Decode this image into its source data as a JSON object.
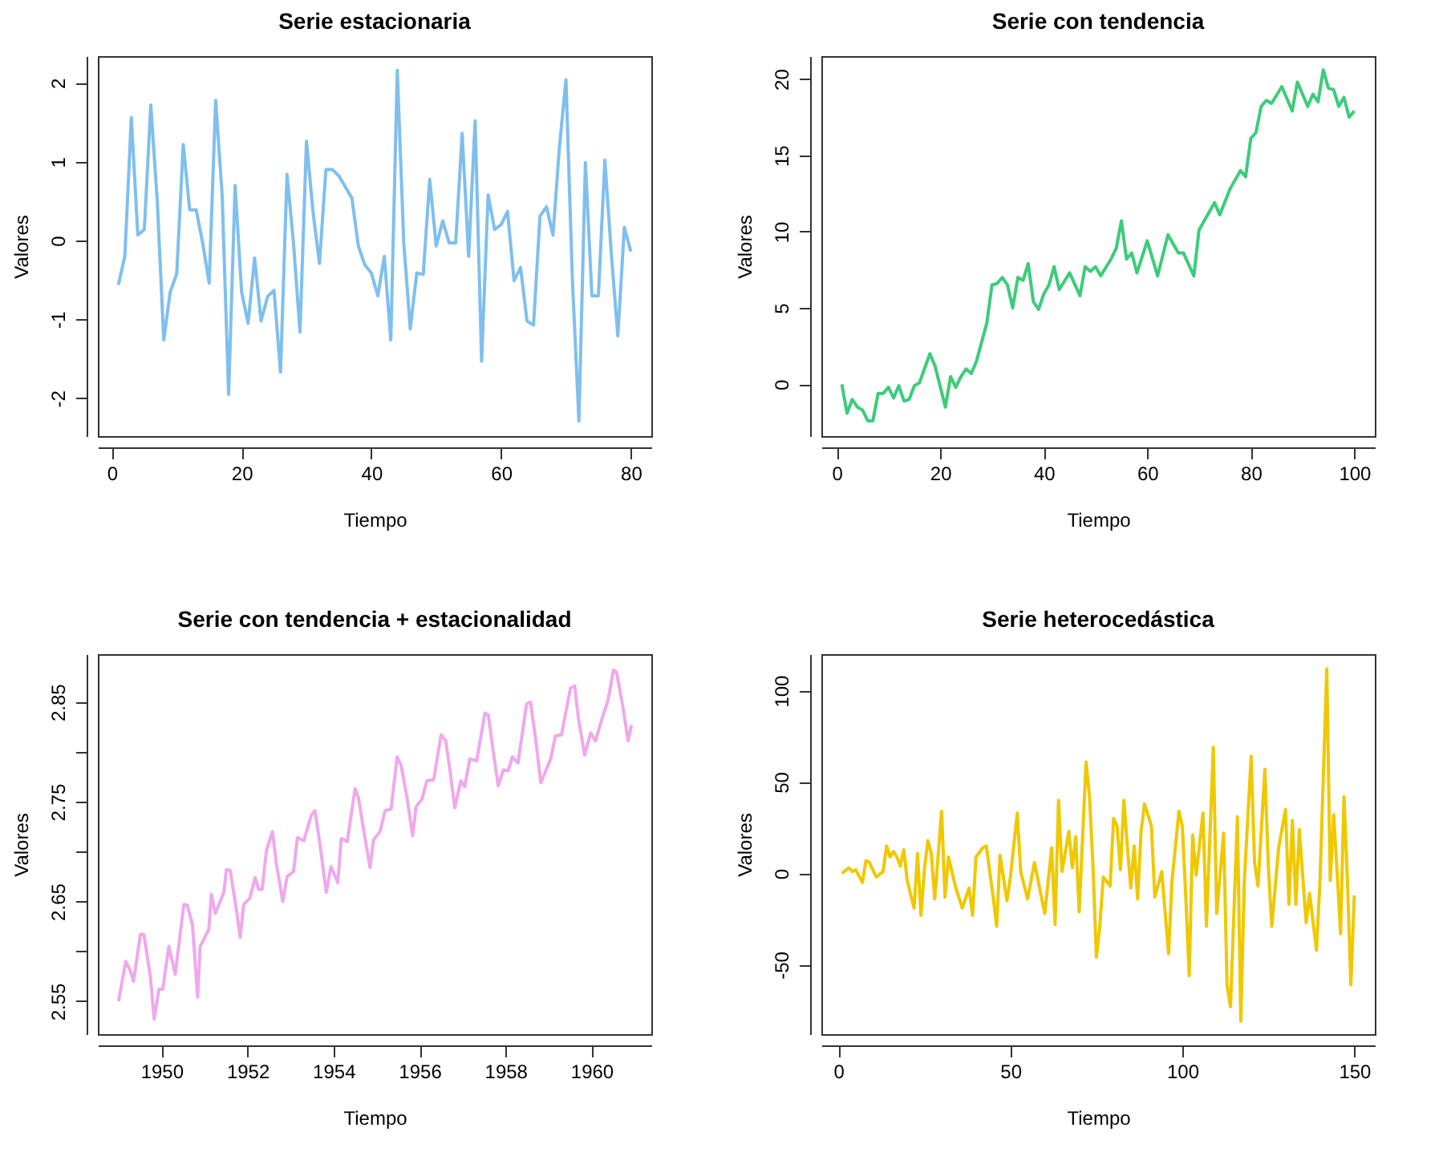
{
  "chart_data": [
    {
      "type": "line",
      "title": "Serie estacionaria",
      "xlabel": "Tiempo",
      "ylabel": "Valores",
      "xlim": [
        -2.16,
        83.16
      ],
      "xticks": [
        0,
        20,
        40,
        60,
        80
      ],
      "ylim": [
        -2.48,
        2.34
      ],
      "yticks": [
        -2,
        -1,
        0,
        1,
        2
      ],
      "x": [
        1,
        2,
        3,
        4,
        5,
        6,
        7,
        8,
        9,
        10,
        11,
        12,
        13,
        14,
        15,
        16,
        17,
        18,
        19,
        20,
        21,
        22,
        23,
        24,
        25,
        26,
        27,
        28,
        29,
        30,
        31,
        32,
        33,
        34,
        35,
        36,
        37,
        38,
        39,
        40,
        41,
        42,
        43,
        44,
        45,
        46,
        47,
        48,
        49,
        50,
        51,
        52,
        53,
        54,
        55,
        56,
        57,
        58,
        59,
        60,
        61,
        62,
        63,
        64,
        65,
        66,
        67,
        68,
        69,
        70,
        71,
        72,
        73,
        74,
        75,
        76,
        77,
        78,
        79,
        80
      ],
      "series": [
        {
          "color": "#7fbfef",
          "values": [
            -0.56,
            -0.2,
            1.56,
            0.07,
            0.14,
            1.72,
            0.5,
            -1.26,
            -0.65,
            -0.42,
            1.22,
            0.39,
            0.39,
            -0.03,
            -0.54,
            1.78,
            0.58,
            -1.95,
            0.7,
            -0.65,
            -1.05,
            -0.22,
            -1.02,
            -0.71,
            -0.63,
            -1.67,
            0.84,
            -0.03,
            -1.16,
            1.26,
            0.37,
            -0.29,
            0.9,
            0.9,
            0.82,
            0.68,
            0.54,
            -0.07,
            -0.31,
            -0.41,
            -0.7,
            -0.2,
            -1.26,
            2.16,
            -0.03,
            -1.12,
            -0.41,
            -0.43,
            0.78,
            -0.07,
            0.25,
            -0.03,
            -0.03,
            1.36,
            -0.2,
            1.52,
            -1.53,
            0.58,
            0.14,
            0.2,
            0.37,
            -0.51,
            -0.34,
            -1.02,
            -1.07,
            0.31,
            0.43,
            0.07,
            1.19,
            2.04,
            -0.51,
            -2.29,
            0.99,
            -0.7,
            -0.7,
            1.02,
            -0.17,
            -1.21,
            0.17,
            -0.14
          ]
        }
      ]
    },
    {
      "type": "line",
      "title": "Serie con tendencia",
      "xlabel": "Tiempo",
      "ylabel": "Valores",
      "xlim": [
        -2.96,
        103.96
      ],
      "xticks": [
        0,
        20,
        40,
        60,
        80,
        100
      ],
      "ylim": [
        -3.4,
        21.5
      ],
      "yticks": [
        0,
        5,
        10,
        15,
        20
      ],
      "x": [
        1,
        2,
        3,
        4,
        5,
        6,
        7,
        8,
        9,
        10,
        11,
        12,
        13,
        14,
        15,
        16,
        18,
        19,
        21,
        22,
        23,
        24,
        25,
        26,
        27,
        29,
        30,
        31,
        32,
        33,
        34,
        35,
        36,
        37,
        38,
        39,
        40,
        41,
        42,
        43,
        45,
        47,
        48,
        49,
        50,
        51,
        53,
        54,
        55,
        56,
        57,
        58,
        60,
        62,
        64,
        66,
        67,
        69,
        70,
        73,
        74,
        76,
        78,
        79,
        80,
        81,
        82,
        83,
        84,
        86,
        88,
        89,
        91,
        92,
        93,
        94,
        95,
        96,
        97,
        98,
        99,
        100
      ],
      "series": [
        {
          "color": "#3dcc7a",
          "values": [
            0,
            -1.9,
            -1.0,
            -1.5,
            -1.7,
            -2.4,
            -2.4,
            -0.6,
            -0.6,
            -0.2,
            -0.9,
            -0.1,
            -1.1,
            -1.0,
            -0.1,
            0.1,
            2.0,
            1.2,
            -1.5,
            0.5,
            -0.2,
            0.5,
            1.0,
            0.7,
            1.5,
            4.0,
            6.5,
            6.6,
            7.0,
            6.5,
            5.0,
            7.0,
            6.8,
            7.9,
            5.4,
            4.9,
            5.9,
            6.5,
            7.7,
            6.2,
            7.3,
            5.8,
            7.7,
            7.4,
            7.7,
            7.1,
            8.2,
            8.9,
            10.7,
            8.2,
            8.6,
            7.3,
            9.4,
            7.1,
            9.8,
            8.6,
            8.6,
            7.1,
            10.1,
            11.9,
            11.1,
            12.8,
            14.0,
            13.6,
            16.1,
            16.5,
            18.2,
            18.6,
            18.4,
            19.5,
            17.9,
            19.8,
            18.2,
            19.0,
            18.5,
            20.6,
            19.4,
            19.3,
            18.2,
            18.8,
            17.5,
            17.9
          ]
        }
      ]
    },
    {
      "type": "line",
      "title": "Serie con tendencia + estacionalidad",
      "xlabel": "Tiempo",
      "ylabel": "Valores",
      "xlim": [
        1948.52,
        1961.39
      ],
      "xticks": [
        1950,
        1952,
        1954,
        1956,
        1958,
        1960
      ],
      "ylim": [
        2.517,
        2.898
      ],
      "yticks": [
        2.55,
        {
          "value": 2.6,
          "label": null
        },
        2.65,
        {
          "value": 2.7,
          "label": null
        },
        2.75,
        {
          "value": 2.8,
          "label": null
        },
        2.85
      ],
      "x": [
        1949.0,
        1949.17,
        1949.28,
        1949.35,
        1949.51,
        1949.59,
        1949.74,
        1949.83,
        1949.94,
        1950.03,
        1950.17,
        1950.32,
        1950.52,
        1950.6,
        1950.72,
        1950.84,
        1950.9,
        1951.1,
        1951.16,
        1951.25,
        1951.45,
        1951.51,
        1951.6,
        1951.74,
        1951.83,
        1951.91,
        1952.05,
        1952.18,
        1952.26,
        1952.34,
        1952.44,
        1952.58,
        1952.67,
        1952.82,
        1952.92,
        1953.07,
        1953.16,
        1953.31,
        1953.48,
        1953.57,
        1953.69,
        1953.83,
        1953.94,
        1954.1,
        1954.18,
        1954.32,
        1954.5,
        1954.58,
        1954.7,
        1954.85,
        1954.93,
        1955.08,
        1955.2,
        1955.34,
        1955.48,
        1955.57,
        1955.71,
        1955.84,
        1955.92,
        1956.06,
        1956.17,
        1956.33,
        1956.5,
        1956.61,
        1956.71,
        1956.82,
        1956.96,
        1957.05,
        1957.17,
        1957.33,
        1957.52,
        1957.6,
        1957.71,
        1957.83,
        1957.95,
        1958.06,
        1958.16,
        1958.29,
        1958.49,
        1958.58,
        1958.7,
        1958.82,
        1959.05,
        1959.16,
        1959.3,
        1959.51,
        1959.61,
        1959.69,
        1959.84,
        1959.98,
        1960.09,
        1960.27,
        1960.38,
        1960.51,
        1960.58,
        1960.73,
        1960.85,
        1960.93
      ],
      "series": [
        {
          "color": "#f0a8ec",
          "values": [
            2.55,
            2.59,
            2.58,
            2.57,
            2.617,
            2.617,
            2.575,
            2.532,
            2.562,
            2.562,
            2.605,
            2.577,
            2.647,
            2.646,
            2.627,
            2.554,
            2.605,
            2.622,
            2.657,
            2.638,
            2.659,
            2.682,
            2.681,
            2.642,
            2.614,
            2.647,
            2.653,
            2.674,
            2.662,
            2.662,
            2.701,
            2.72,
            2.688,
            2.65,
            2.675,
            2.68,
            2.714,
            2.711,
            2.736,
            2.741,
            2.706,
            2.659,
            2.685,
            2.669,
            2.713,
            2.71,
            2.763,
            2.754,
            2.722,
            2.684,
            2.712,
            2.72,
            2.741,
            2.743,
            2.795,
            2.787,
            2.754,
            2.716,
            2.745,
            2.753,
            2.771,
            2.772,
            2.817,
            2.811,
            2.781,
            2.744,
            2.771,
            2.765,
            2.793,
            2.791,
            2.839,
            2.837,
            2.802,
            2.766,
            2.782,
            2.781,
            2.795,
            2.789,
            2.848,
            2.85,
            2.813,
            2.769,
            2.793,
            2.816,
            2.817,
            2.864,
            2.866,
            2.835,
            2.797,
            2.819,
            2.811,
            2.837,
            2.851,
            2.882,
            2.88,
            2.845,
            2.811,
            2.827
          ]
        }
      ]
    },
    {
      "type": "line",
      "title": "Serie heterocedástica",
      "xlabel": "Tiempo",
      "ylabel": "Valores",
      "xlim": [
        -4.96,
        155.96
      ],
      "xticks": [
        0,
        50,
        100,
        150
      ],
      "ylim": [
        -88,
        120
      ],
      "yticks": [
        -50,
        0,
        50,
        100
      ],
      "x": [
        1,
        3,
        4,
        5,
        7,
        8,
        9,
        11,
        13,
        14,
        15,
        16,
        17,
        18,
        19,
        20,
        22,
        23,
        24,
        25,
        26,
        27,
        28,
        30,
        31,
        32,
        34,
        36,
        38,
        39,
        40,
        42,
        43,
        45,
        46,
        47,
        49,
        50,
        52,
        53,
        55,
        57,
        60,
        62,
        63,
        64,
        65,
        67,
        68,
        69,
        70,
        72,
        73,
        74,
        75,
        76,
        77,
        79,
        80,
        81,
        82,
        83,
        84,
        85,
        86,
        87,
        88,
        89,
        91,
        92,
        94,
        96,
        97,
        99,
        100,
        101,
        102,
        103,
        104,
        106,
        107,
        109,
        110,
        112,
        113,
        114,
        116,
        117,
        118,
        120,
        121,
        122,
        124,
        125,
        126,
        128,
        130,
        131,
        132,
        133,
        134,
        136,
        137,
        139,
        140,
        142,
        143,
        144,
        145,
        146,
        147,
        148,
        149,
        150
      ],
      "series": [
        {
          "color": "#f0c800",
          "values": [
            0,
            3,
            1,
            2,
            -5,
            7,
            6,
            -2,
            1,
            15,
            9,
            12,
            9,
            4,
            13,
            -4,
            -19,
            11,
            -23,
            2,
            18,
            11,
            -14,
            34,
            -13,
            9,
            -7,
            -19,
            -8,
            -23,
            9,
            14,
            15,
            -13,
            -29,
            10,
            -15,
            -2,
            33,
            1,
            -14,
            6,
            -22,
            14,
            -28,
            40,
            1,
            23,
            3,
            20,
            -21,
            61,
            42,
            5,
            -46,
            -29,
            -2,
            -7,
            30,
            26,
            2,
            40,
            15,
            -8,
            15,
            -14,
            23,
            38,
            26,
            -13,
            1,
            -44,
            -4,
            34,
            26,
            -13,
            -56,
            21,
            -1,
            33,
            -29,
            69,
            -22,
            22,
            -61,
            -73,
            31,
            -81,
            -5,
            64,
            6,
            -7,
            57,
            4,
            -29,
            14,
            35,
            -17,
            29,
            -17,
            24,
            -27,
            -11,
            -42,
            -5,
            112,
            -4,
            32,
            1,
            -33,
            42,
            -4,
            -61,
            -12
          ]
        }
      ]
    }
  ]
}
